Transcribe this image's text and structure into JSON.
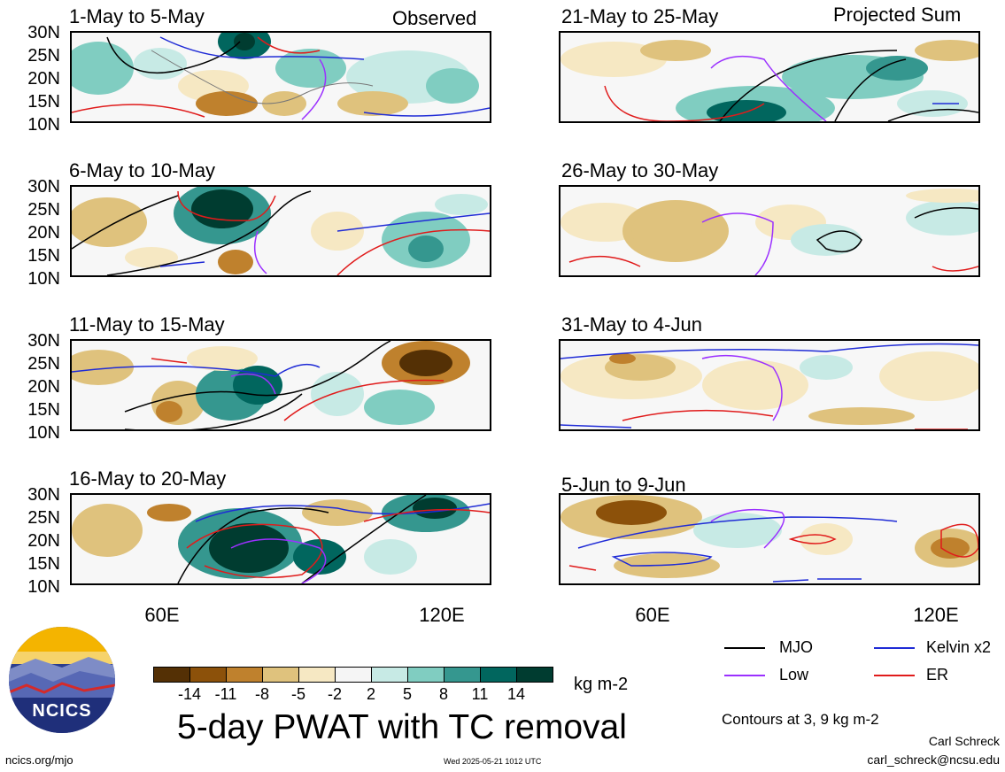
{
  "panel_titles": {
    "p1": "1-May to 5-May",
    "p2": "6-May to 10-May",
    "p3": "11-May to 15-May",
    "p4": "16-May to 20-May",
    "p5": "21-May to 25-May",
    "p6": "26-May to 30-May",
    "p7": "31-May to 4-Jun",
    "p8": "5-Jun to 9-Jun"
  },
  "column_labels": {
    "observed": "Observed",
    "projected": "Projected Sum"
  },
  "lat_labels": [
    "30N",
    "25N",
    "20N",
    "15N",
    "10N"
  ],
  "lon_labels": {
    "lon60": "60E",
    "lon120": "120E"
  },
  "legend": {
    "mjo": "MJO",
    "kelvin": "Kelvin x2",
    "low": "Low",
    "er": "ER",
    "colors": {
      "mjo": "#000000",
      "kelvin": "#1f2bd6",
      "low": "#9b30ff",
      "er": "#e01b1b"
    }
  },
  "colorbar": {
    "ticks": [
      "-14",
      "-11",
      "-8",
      "-5",
      "-2",
      "2",
      "5",
      "8",
      "11",
      "14"
    ],
    "colors": [
      "#543005",
      "#8c510a",
      "#bf812d",
      "#dfc27d",
      "#f6e8c3",
      "#f5f5f5",
      "#c7eae5",
      "#80cdc1",
      "#35978f",
      "#01665e",
      "#003c30"
    ],
    "units": "kg m-2"
  },
  "main_title": "5-day PWAT with TC removal",
  "contour_note": "Contours at 3, 9 kg m-2",
  "author": {
    "name": "Carl Schreck",
    "email": "carl_schreck@ncsu.edu"
  },
  "footer": {
    "url": "ncics.org/mjo",
    "timestamp": "Wed 2025-05-21 1012 UTC"
  },
  "logo": {
    "text": "NCICS"
  }
}
